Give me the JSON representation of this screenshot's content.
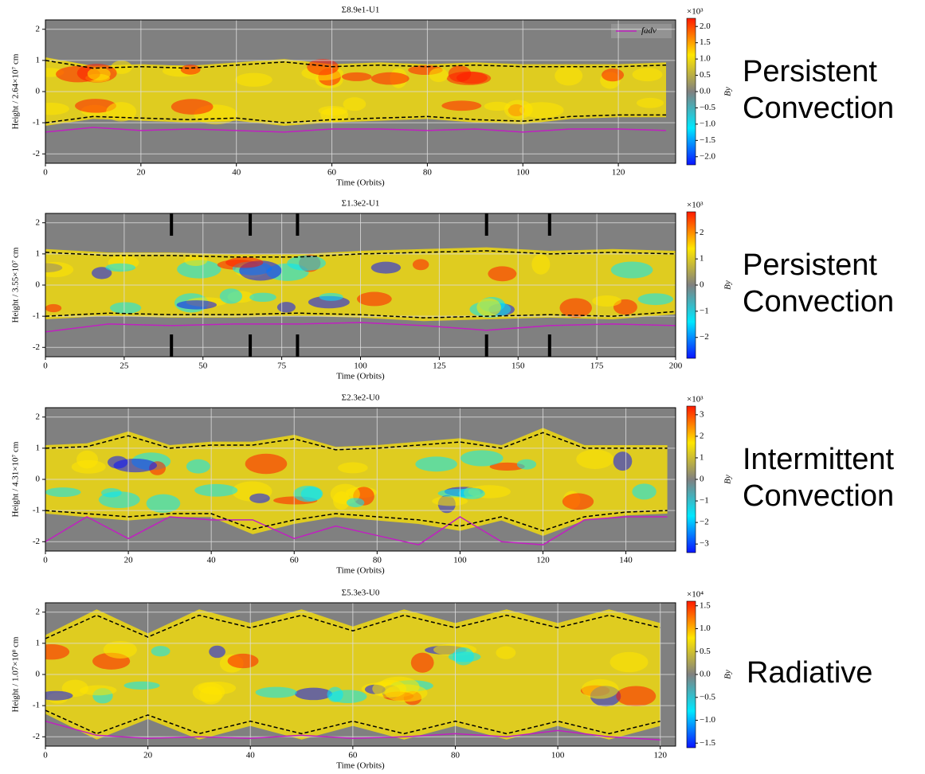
{
  "chart_data": [
    {
      "type": "heatmap-line",
      "title": "Σ8.9e1-U1",
      "xlabel": "Time (Orbits)",
      "ylabel": "Height / 2.64×10⁷ cm",
      "xlim": [
        0,
        132
      ],
      "xticks": [
        0,
        20,
        40,
        60,
        80,
        100,
        120
      ],
      "ylim": [
        -2.3,
        2.3
      ],
      "yticks": [
        -2,
        -1,
        0,
        1,
        2
      ],
      "grid": true,
      "legend": "upper right",
      "x": [
        0,
        10,
        20,
        30,
        40,
        50,
        60,
        70,
        80,
        90,
        100,
        110,
        120,
        130
      ],
      "series": [
        {
          "name": "fadv",
          "color": "#c020c0",
          "values": [
            -1.3,
            -1.15,
            -1.25,
            -1.2,
            -1.25,
            -1.3,
            -1.2,
            -1.2,
            -1.25,
            -1.2,
            -1.3,
            -1.2,
            -1.2,
            -1.25
          ]
        },
        {
          "color": "#000000",
          "dash": true,
          "values": [
            1.0,
            0.75,
            0.8,
            0.75,
            0.85,
            0.95,
            0.8,
            0.85,
            0.8,
            0.85,
            0.8,
            0.8,
            0.8,
            0.85
          ]
        },
        {
          "color": "#000000",
          "dash": true,
          "values": [
            -1.0,
            -0.8,
            -0.85,
            -0.9,
            -0.85,
            -1.0,
            -0.9,
            -0.85,
            -0.8,
            -0.9,
            -0.95,
            -0.8,
            -0.75,
            -0.75
          ]
        }
      ],
      "colormap": [
        "#0a14ff",
        "#00e8ff",
        "#808080",
        "#ffe600",
        "#ff1a00"
      ],
      "cbar_label": "By",
      "cbar_exponent": "×10³",
      "cbar_lim": [
        -2.25,
        2.25
      ],
      "cbar_ticks": [
        {
          "value": -2.0,
          "label": "−2.0"
        },
        {
          "value": -1.5,
          "label": "−1.5"
        },
        {
          "value": -1.0,
          "label": "−1.0"
        },
        {
          "value": -0.5,
          "label": "−0.5"
        },
        {
          "value": 0.0,
          "label": "0.0"
        },
        {
          "value": 0.5,
          "label": "0.5"
        },
        {
          "value": 1.0,
          "label": "1.0"
        },
        {
          "value": 1.5,
          "label": "1.5"
        },
        {
          "value": 2.0,
          "label": "2.0"
        }
      ],
      "regime_lines": [
        "Persistent",
        "Convection"
      ],
      "regime_color": "#0a0a8c"
    },
    {
      "type": "heatmap-line",
      "title": "Σ1.3e2-U1",
      "xlabel": "Time (Orbits)",
      "ylabel": "Height / 3.55×10⁷ cm",
      "xlim": [
        0,
        200
      ],
      "xticks": [
        0,
        25,
        50,
        75,
        100,
        125,
        150,
        175,
        200
      ],
      "ylim": [
        -2.3,
        2.3
      ],
      "yticks": [
        -2,
        -1,
        0,
        1,
        2
      ],
      "grid": true,
      "markers": [
        40,
        65,
        80,
        140,
        160
      ],
      "x": [
        0,
        20,
        40,
        60,
        80,
        100,
        120,
        140,
        160,
        180,
        200
      ],
      "series": [
        {
          "color": "#c020c0",
          "values": [
            -1.5,
            -1.25,
            -1.3,
            -1.25,
            -1.25,
            -1.2,
            -1.3,
            -1.45,
            -1.3,
            -1.25,
            -1.3
          ]
        },
        {
          "color": "#000000",
          "dash": true,
          "values": [
            1.05,
            0.95,
            0.95,
            0.9,
            0.9,
            1.0,
            1.05,
            1.1,
            1.0,
            1.05,
            1.0
          ]
        },
        {
          "color": "#000000",
          "dash": true,
          "values": [
            -1.0,
            -0.9,
            -0.95,
            -0.95,
            -0.9,
            -0.95,
            -1.05,
            -1.0,
            -0.95,
            -1.0,
            -0.85
          ]
        }
      ],
      "colormap": [
        "#0a14ff",
        "#00e8ff",
        "#808080",
        "#ffe600",
        "#ff1a00"
      ],
      "cbar_label": "By",
      "cbar_exponent": "×10³",
      "cbar_lim": [
        -2.8,
        2.8
      ],
      "cbar_ticks": [
        {
          "value": -2,
          "label": "−2"
        },
        {
          "value": -1,
          "label": "−1"
        },
        0,
        1,
        2
      ],
      "regime_lines": [
        "Persistent",
        "Convection"
      ],
      "regime_color": "#e8782e"
    },
    {
      "type": "heatmap-line",
      "title": "Σ2.3e2-U0",
      "xlabel": "Time (Orbits)",
      "ylabel": "Height / 4.31×10⁷ cm",
      "xlim": [
        0,
        152
      ],
      "xticks": [
        0,
        20,
        40,
        60,
        80,
        100,
        120,
        140
      ],
      "ylim": [
        -2.3,
        2.3
      ],
      "yticks": [
        -2,
        -1,
        0,
        1,
        2
      ],
      "grid": true,
      "x": [
        0,
        10,
        20,
        30,
        40,
        50,
        60,
        70,
        80,
        90,
        100,
        110,
        120,
        130,
        140,
        150
      ],
      "series": [
        {
          "color": "#c020c0",
          "values": [
            -2.0,
            -1.2,
            -1.9,
            -1.2,
            -1.3,
            -1.3,
            -1.9,
            -1.5,
            -1.8,
            -2.1,
            -1.2,
            -2.0,
            -2.1,
            -1.3,
            -1.2,
            -1.2
          ]
        },
        {
          "color": "#000000",
          "dash": true,
          "values": [
            1.0,
            1.05,
            1.4,
            1.0,
            1.1,
            1.1,
            1.3,
            0.95,
            1.0,
            1.1,
            1.2,
            1.0,
            1.5,
            1.0,
            1.0,
            1.0
          ]
        },
        {
          "color": "#000000",
          "dash": true,
          "values": [
            -1.0,
            -1.1,
            -1.2,
            -1.1,
            -1.1,
            -1.6,
            -1.3,
            -1.1,
            -1.2,
            -1.3,
            -1.5,
            -1.2,
            -1.65,
            -1.2,
            -1.05,
            -1.0
          ]
        }
      ],
      "colormap": [
        "#0a14ff",
        "#00e8ff",
        "#808080",
        "#ffe600",
        "#ff1a00"
      ],
      "cbar_label": "By",
      "cbar_exponent": "×10³",
      "cbar_lim": [
        -3.4,
        3.4
      ],
      "cbar_ticks": [
        {
          "value": -3,
          "label": "−3"
        },
        {
          "value": -2,
          "label": "−2"
        },
        {
          "value": -1,
          "label": "−1"
        },
        0,
        1,
        2,
        3
      ],
      "regime_lines": [
        "Intermittent",
        "Convection"
      ],
      "regime_color": "#1aaa3a"
    },
    {
      "type": "heatmap-line",
      "title": "Σ5.3e3-U0",
      "xlabel": "Time (Orbits)",
      "ylabel": "Height / 1.07×10⁸ cm",
      "xlim": [
        0,
        123
      ],
      "xticks": [
        0,
        20,
        40,
        60,
        80,
        100,
        120
      ],
      "ylim": [
        -2.3,
        2.3
      ],
      "yticks": [
        -2,
        -1,
        0,
        1,
        2
      ],
      "grid": true,
      "x": [
        0,
        10,
        20,
        30,
        40,
        50,
        60,
        70,
        80,
        90,
        100,
        110,
        120
      ],
      "series": [
        {
          "color": "#c020c0",
          "values": [
            -1.5,
            -1.95,
            -2.05,
            -2.0,
            -2.05,
            -1.95,
            -2.05,
            -2.0,
            -1.9,
            -2.0,
            -1.8,
            -2.0,
            -2.1
          ]
        },
        {
          "color": "#000000",
          "dash": true,
          "values": [
            1.15,
            1.9,
            1.2,
            1.9,
            1.5,
            1.9,
            1.4,
            1.9,
            1.5,
            1.9,
            1.5,
            1.9,
            1.5
          ]
        },
        {
          "color": "#000000",
          "dash": true,
          "values": [
            -1.15,
            -1.9,
            -1.3,
            -1.9,
            -1.5,
            -1.9,
            -1.5,
            -1.9,
            -1.5,
            -1.9,
            -1.5,
            -1.9,
            -1.5
          ]
        }
      ],
      "colormap": [
        "#0a14ff",
        "#00e8ff",
        "#808080",
        "#ffe600",
        "#ff1a00"
      ],
      "cbar_label": "By",
      "cbar_exponent": "×10⁴",
      "cbar_lim": [
        -1.6,
        1.6
      ],
      "cbar_ticks": [
        {
          "value": -1.5,
          "label": "−1.5"
        },
        {
          "value": -1.0,
          "label": "−1.0"
        },
        {
          "value": -0.5,
          "label": "−0.5"
        },
        {
          "value": 0.0,
          "label": "0.0"
        },
        {
          "value": 0.5,
          "label": "0.5"
        },
        {
          "value": 1.0,
          "label": "1.0"
        },
        {
          "value": 1.5,
          "label": "1.5"
        }
      ],
      "regime_lines": [
        "Radiative"
      ],
      "regime_color": "#000000"
    }
  ]
}
